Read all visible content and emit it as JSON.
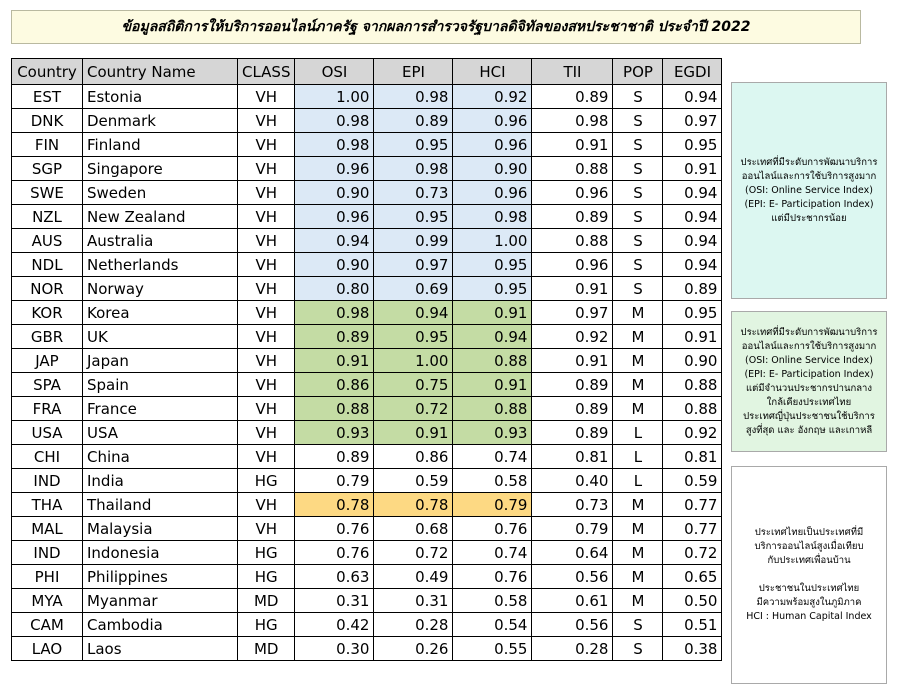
{
  "title": "ข้อมูลสถิติการให้บริการออนไลน์ภาครัฐ จากผลการสำรวจรัฐบาลดิจิทัลของสหประชาชาติ ประจำปี 2022",
  "table": {
    "headers": [
      "Country",
      "Country Name",
      "CLASS",
      "OSI",
      "EPI",
      "HCI",
      "TII",
      "POP",
      "EGDI"
    ],
    "rows": [
      {
        "code": "EST",
        "name": "Estonia",
        "class": "VH",
        "osi": "1.00",
        "epi": "0.98",
        "hci": "0.92",
        "tii": "0.89",
        "pop": "S",
        "egdi": "0.94",
        "highlight": "blue"
      },
      {
        "code": "DNK",
        "name": "Denmark",
        "class": "VH",
        "osi": "0.98",
        "epi": "0.89",
        "hci": "0.96",
        "tii": "0.98",
        "pop": "S",
        "egdi": "0.97",
        "highlight": "blue"
      },
      {
        "code": "FIN",
        "name": "Finland",
        "class": "VH",
        "osi": "0.98",
        "epi": "0.95",
        "hci": "0.96",
        "tii": "0.91",
        "pop": "S",
        "egdi": "0.95",
        "highlight": "blue"
      },
      {
        "code": "SGP",
        "name": "Singapore",
        "class": "VH",
        "osi": "0.96",
        "epi": "0.98",
        "hci": "0.90",
        "tii": "0.88",
        "pop": "S",
        "egdi": "0.91",
        "highlight": "blue"
      },
      {
        "code": "SWE",
        "name": "Sweden",
        "class": "VH",
        "osi": "0.90",
        "epi": "0.73",
        "hci": "0.96",
        "tii": "0.96",
        "pop": "S",
        "egdi": "0.94",
        "highlight": "blue"
      },
      {
        "code": "NZL",
        "name": "New Zealand",
        "class": "VH",
        "osi": "0.96",
        "epi": "0.95",
        "hci": "0.98",
        "tii": "0.89",
        "pop": "S",
        "egdi": "0.94",
        "highlight": "blue"
      },
      {
        "code": "AUS",
        "name": "Australia",
        "class": "VH",
        "osi": "0.94",
        "epi": "0.99",
        "hci": "1.00",
        "tii": "0.88",
        "pop": "S",
        "egdi": "0.94",
        "highlight": "blue"
      },
      {
        "code": "NDL",
        "name": "Netherlands",
        "class": "VH",
        "osi": "0.90",
        "epi": "0.97",
        "hci": "0.95",
        "tii": "0.96",
        "pop": "S",
        "egdi": "0.94",
        "highlight": "blue"
      },
      {
        "code": "NOR",
        "name": "Norway",
        "class": "VH",
        "osi": "0.80",
        "epi": "0.69",
        "hci": "0.95",
        "tii": "0.91",
        "pop": "S",
        "egdi": "0.89",
        "highlight": "blue"
      },
      {
        "code": "KOR",
        "name": "Korea",
        "class": "VH",
        "osi": "0.98",
        "epi": "0.94",
        "hci": "0.91",
        "tii": "0.97",
        "pop": "M",
        "egdi": "0.95",
        "highlight": "green"
      },
      {
        "code": "GBR",
        "name": "UK",
        "class": "VH",
        "osi": "0.89",
        "epi": "0.95",
        "hci": "0.94",
        "tii": "0.92",
        "pop": "M",
        "egdi": "0.91",
        "highlight": "green"
      },
      {
        "code": "JAP",
        "name": "Japan",
        "class": "VH",
        "osi": "0.91",
        "epi": "1.00",
        "hci": "0.88",
        "tii": "0.91",
        "pop": "M",
        "egdi": "0.90",
        "highlight": "green"
      },
      {
        "code": "SPA",
        "name": "Spain",
        "class": "VH",
        "osi": "0.86",
        "epi": "0.75",
        "hci": "0.91",
        "tii": "0.89",
        "pop": "M",
        "egdi": "0.88",
        "highlight": "green"
      },
      {
        "code": "FRA",
        "name": "France",
        "class": "VH",
        "osi": "0.88",
        "epi": "0.72",
        "hci": "0.88",
        "tii": "0.89",
        "pop": "M",
        "egdi": "0.88",
        "highlight": "green"
      },
      {
        "code": "USA",
        "name": "USA",
        "class": "VH",
        "osi": "0.93",
        "epi": "0.91",
        "hci": "0.93",
        "tii": "0.89",
        "pop": "L",
        "egdi": "0.92",
        "highlight": "green"
      },
      {
        "code": "CHI",
        "name": "China",
        "class": "VH",
        "osi": "0.89",
        "epi": "0.86",
        "hci": "0.74",
        "tii": "0.81",
        "pop": "L",
        "egdi": "0.81",
        "highlight": ""
      },
      {
        "code": "IND",
        "name": "India",
        "class": "HG",
        "osi": "0.79",
        "epi": "0.59",
        "hci": "0.58",
        "tii": "0.40",
        "pop": "L",
        "egdi": "0.59",
        "highlight": ""
      },
      {
        "code": "THA",
        "name": "Thailand",
        "class": "VH",
        "osi": "0.78",
        "epi": "0.78",
        "hci": "0.79",
        "tii": "0.73",
        "pop": "M",
        "egdi": "0.77",
        "highlight": "orange"
      },
      {
        "code": "MAL",
        "name": "Malaysia",
        "class": "VH",
        "osi": "0.76",
        "epi": "0.68",
        "hci": "0.76",
        "tii": "0.79",
        "pop": "M",
        "egdi": "0.77",
        "highlight": ""
      },
      {
        "code": "IND",
        "name": "Indonesia",
        "class": "HG",
        "osi": "0.76",
        "epi": "0.72",
        "hci": "0.74",
        "tii": "0.64",
        "pop": "M",
        "egdi": "0.72",
        "highlight": ""
      },
      {
        "code": "PHI",
        "name": "Philippines",
        "class": "HG",
        "osi": "0.63",
        "epi": "0.49",
        "hci": "0.76",
        "tii": "0.56",
        "pop": "M",
        "egdi": "0.65",
        "highlight": ""
      },
      {
        "code": "MYA",
        "name": "Myanmar",
        "class": "MD",
        "osi": "0.31",
        "epi": "0.31",
        "hci": "0.58",
        "tii": "0.61",
        "pop": "M",
        "egdi": "0.50",
        "highlight": ""
      },
      {
        "code": "CAM",
        "name": "Cambodia",
        "class": "HG",
        "osi": "0.42",
        "epi": "0.28",
        "hci": "0.54",
        "tii": "0.56",
        "pop": "S",
        "egdi": "0.51",
        "highlight": ""
      },
      {
        "code": "LAO",
        "name": "Laos",
        "class": "MD",
        "osi": "0.30",
        "epi": "0.26",
        "hci": "0.55",
        "tii": "0.28",
        "pop": "S",
        "egdi": "0.38",
        "highlight": ""
      }
    ]
  },
  "notes": [
    {
      "lines": [
        "ประเทศที่มีระดับการพัฒนาบริการ",
        "ออนไลน์และการใช้บริการสูงมาก",
        "(OSI: Online Service Index)",
        "(EPI: E- Participation Index)",
        "แต่มีประชากรน้อย"
      ],
      "color": "#dcf7f1"
    },
    {
      "lines": [
        "ประเทศที่มีระดับการพัฒนาบริการ",
        "ออนไลน์และการใช้บริการสูงมาก",
        "(OSI: Online Service Index)",
        "(EPI: E- Participation Index)",
        "แต่มีจำนวนประชากรปานกลาง",
        "ใกล้เคียงประเทศไทย",
        "ประเทศญี่ปุ่นประชาชนใช้บริการ",
        "สูงที่สุด และ อังกฤษ และเกาหลี"
      ],
      "color": "#e1f5e1"
    },
    {
      "lines": [
        "ประเทศไทยเป็นประเทศที่มี",
        "บริการออนไลน์สูงเมื่อเทียบ",
        "กับประเทศเพื่อนบ้าน",
        "",
        "ประชาชนในประเทศไทย",
        "มีความพร้อมสูงในภูมิภาค",
        "HCI : Human Capital Index"
      ],
      "color": "#ffffff"
    }
  ],
  "colors": {
    "highlight_blue": "#dce9f6",
    "highlight_green": "#c4dca4",
    "highlight_orange": "#fdd983",
    "header_gray": "#d6d6d6",
    "title_bg": "#fdfbe1"
  }
}
